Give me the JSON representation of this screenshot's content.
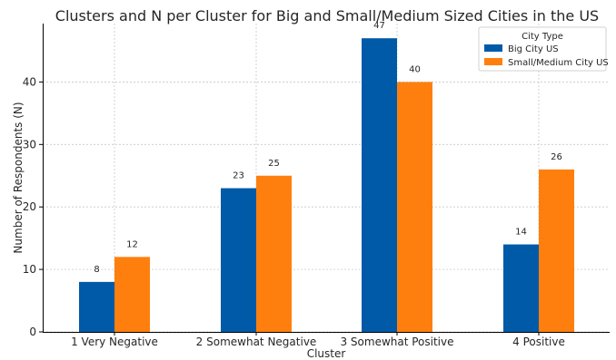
{
  "chart_data": {
    "type": "bar",
    "title": "Clusters and N per Cluster for Big and Small/Medium Sized Cities in the US",
    "xlabel": "Cluster",
    "ylabel": "Number of Respondents (N)",
    "categories": [
      "1 Very Negative",
      "2 Somewhat Negative",
      "3 Somewhat Positive",
      "4 Positive"
    ],
    "series": [
      {
        "name": "Big City US",
        "values": [
          8,
          23,
          47,
          14
        ],
        "color": "#005aa8"
      },
      {
        "name": "Small/Medium City US",
        "values": [
          12,
          25,
          40,
          26
        ],
        "color": "#ff7f0e"
      }
    ],
    "ylim": [
      0,
      49.35
    ],
    "yticks": [
      0,
      10,
      20,
      30,
      40
    ],
    "grid": true,
    "legend": {
      "title": "City Type",
      "position": "top-right"
    }
  }
}
